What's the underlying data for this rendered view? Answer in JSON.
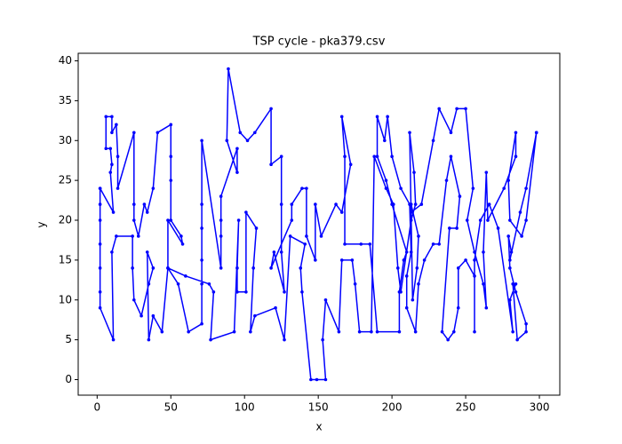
{
  "chart_data": {
    "type": "line",
    "title": "TSP cycle - pka379.csv",
    "x_label": "x",
    "y_label": "y",
    "x": [
      2,
      11,
      9,
      10,
      9,
      6,
      6,
      10,
      10,
      13,
      14,
      14,
      25,
      25,
      25,
      28,
      32,
      34,
      38,
      41,
      50,
      50,
      50,
      50,
      57,
      58,
      48,
      48,
      55,
      62,
      71,
      71,
      71,
      71,
      71,
      71,
      84,
      84,
      84,
      84,
      95,
      95,
      88,
      89,
      97,
      102,
      107,
      118,
      118,
      125,
      125,
      125,
      127,
      120,
      118,
      132,
      132,
      139,
      142,
      142,
      148,
      148,
      152,
      162,
      166,
      172,
      166,
      168,
      168,
      179,
      185,
      190,
      205,
      205,
      208,
      210,
      200,
      196,
      190,
      190,
      195,
      197,
      200,
      206,
      212,
      213,
      210,
      210,
      216,
      218,
      222,
      228,
      232,
      237,
      240,
      246,
      244,
      239,
      234,
      238,
      242,
      245,
      245,
      250,
      256,
      256,
      256,
      260,
      266,
      272,
      282,
      280,
      284,
      282,
      285,
      291,
      291,
      284,
      280,
      279,
      281,
      280,
      287,
      291,
      298,
      298,
      291,
      288,
      280,
      279,
      284,
      284,
      276,
      265,
      264,
      262,
      264,
      262,
      256,
      251,
      255,
      250,
      244,
      240,
      232,
      228,
      220,
      213,
      213,
      218,
      217,
      214,
      212,
      215,
      216,
      213,
      206,
      204,
      201,
      196,
      188,
      186,
      178,
      175,
      173,
      166,
      164,
      155,
      153,
      155,
      149,
      145,
      139,
      138,
      141,
      131,
      127,
      121,
      107,
      104,
      106,
      108,
      101,
      101,
      95,
      95,
      96,
      93,
      77,
      79,
      76,
      60,
      48,
      44,
      38,
      35,
      34,
      38,
      35,
      30,
      25,
      24,
      24,
      13,
      10,
      11,
      2,
      2,
      2,
      2,
      2,
      2,
      2
    ],
    "series": [
      {
        "color": "#0000ff",
        "values": [
          24,
          21,
          26,
          27,
          29,
          29,
          33,
          33,
          31,
          32,
          28,
          24,
          31,
          22,
          20,
          18,
          22,
          21,
          24,
          31,
          32,
          28,
          25,
          20,
          18,
          17,
          20,
          14,
          12,
          6,
          7,
          12,
          15,
          19,
          22,
          30,
          14,
          18,
          20,
          23,
          29,
          26,
          30,
          39,
          31,
          30,
          31,
          34,
          27,
          28,
          22,
          16,
          11,
          16,
          14,
          20,
          22,
          24,
          24,
          18,
          15,
          22,
          18,
          22,
          21,
          27,
          33,
          28,
          17,
          17,
          17,
          6,
          6,
          11,
          15,
          16,
          22,
          25,
          28,
          33,
          30,
          33,
          28,
          24,
          22,
          16,
          13,
          9,
          6,
          12,
          15,
          17,
          17,
          25,
          28,
          23,
          19,
          19,
          6,
          5,
          6,
          9,
          14,
          15,
          13,
          6,
          15,
          20,
          22,
          19,
          6,
          10,
          12,
          12,
          5,
          6,
          7,
          11,
          14,
          18,
          16,
          15,
          21,
          24,
          31,
          31,
          20,
          18,
          20,
          25,
          31,
          28,
          24,
          20,
          26,
          16,
          9,
          12,
          16,
          20,
          24,
          34,
          34,
          31,
          34,
          30,
          22,
          21,
          22,
          18,
          14,
          10,
          31,
          26,
          22,
          20,
          11,
          14,
          22,
          24,
          28,
          6,
          6,
          12,
          15,
          15,
          6,
          10,
          5,
          0,
          0,
          0,
          11,
          14,
          17,
          18,
          5,
          9,
          8,
          6,
          14,
          19,
          21,
          11,
          11,
          14,
          20,
          6,
          5,
          11,
          12,
          13,
          14,
          6,
          8,
          5,
          16,
          14,
          12,
          8,
          10,
          14,
          18,
          18,
          16,
          5,
          9,
          11,
          14,
          17,
          20,
          22,
          24
        ]
      }
    ],
    "xlim": [
      -12.85,
      313.85
    ],
    "ylim": [
      -1.95,
      40.95
    ],
    "xticks": [
      0,
      50,
      100,
      150,
      200,
      250,
      300
    ],
    "yticks": [
      0,
      5,
      10,
      15,
      20,
      25,
      30,
      35,
      40
    ]
  }
}
